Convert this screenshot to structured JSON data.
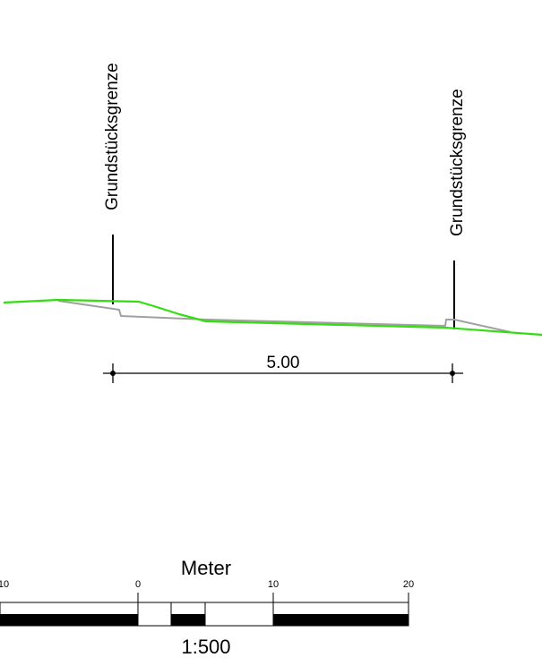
{
  "annotations": {
    "boundary_left_label": "Grundstücksgrenze",
    "boundary_right_label": "Grundstücksgrenze",
    "dimension_label": "5.00"
  },
  "scale_bar": {
    "title": "Meter",
    "tick_labels": [
      "10",
      "0",
      "10",
      "20"
    ],
    "ratio": "1:500"
  },
  "colors": {
    "terrain_existing": "#33dd11",
    "terrain_planned": "#a0a0a0",
    "ink": "#000000"
  }
}
